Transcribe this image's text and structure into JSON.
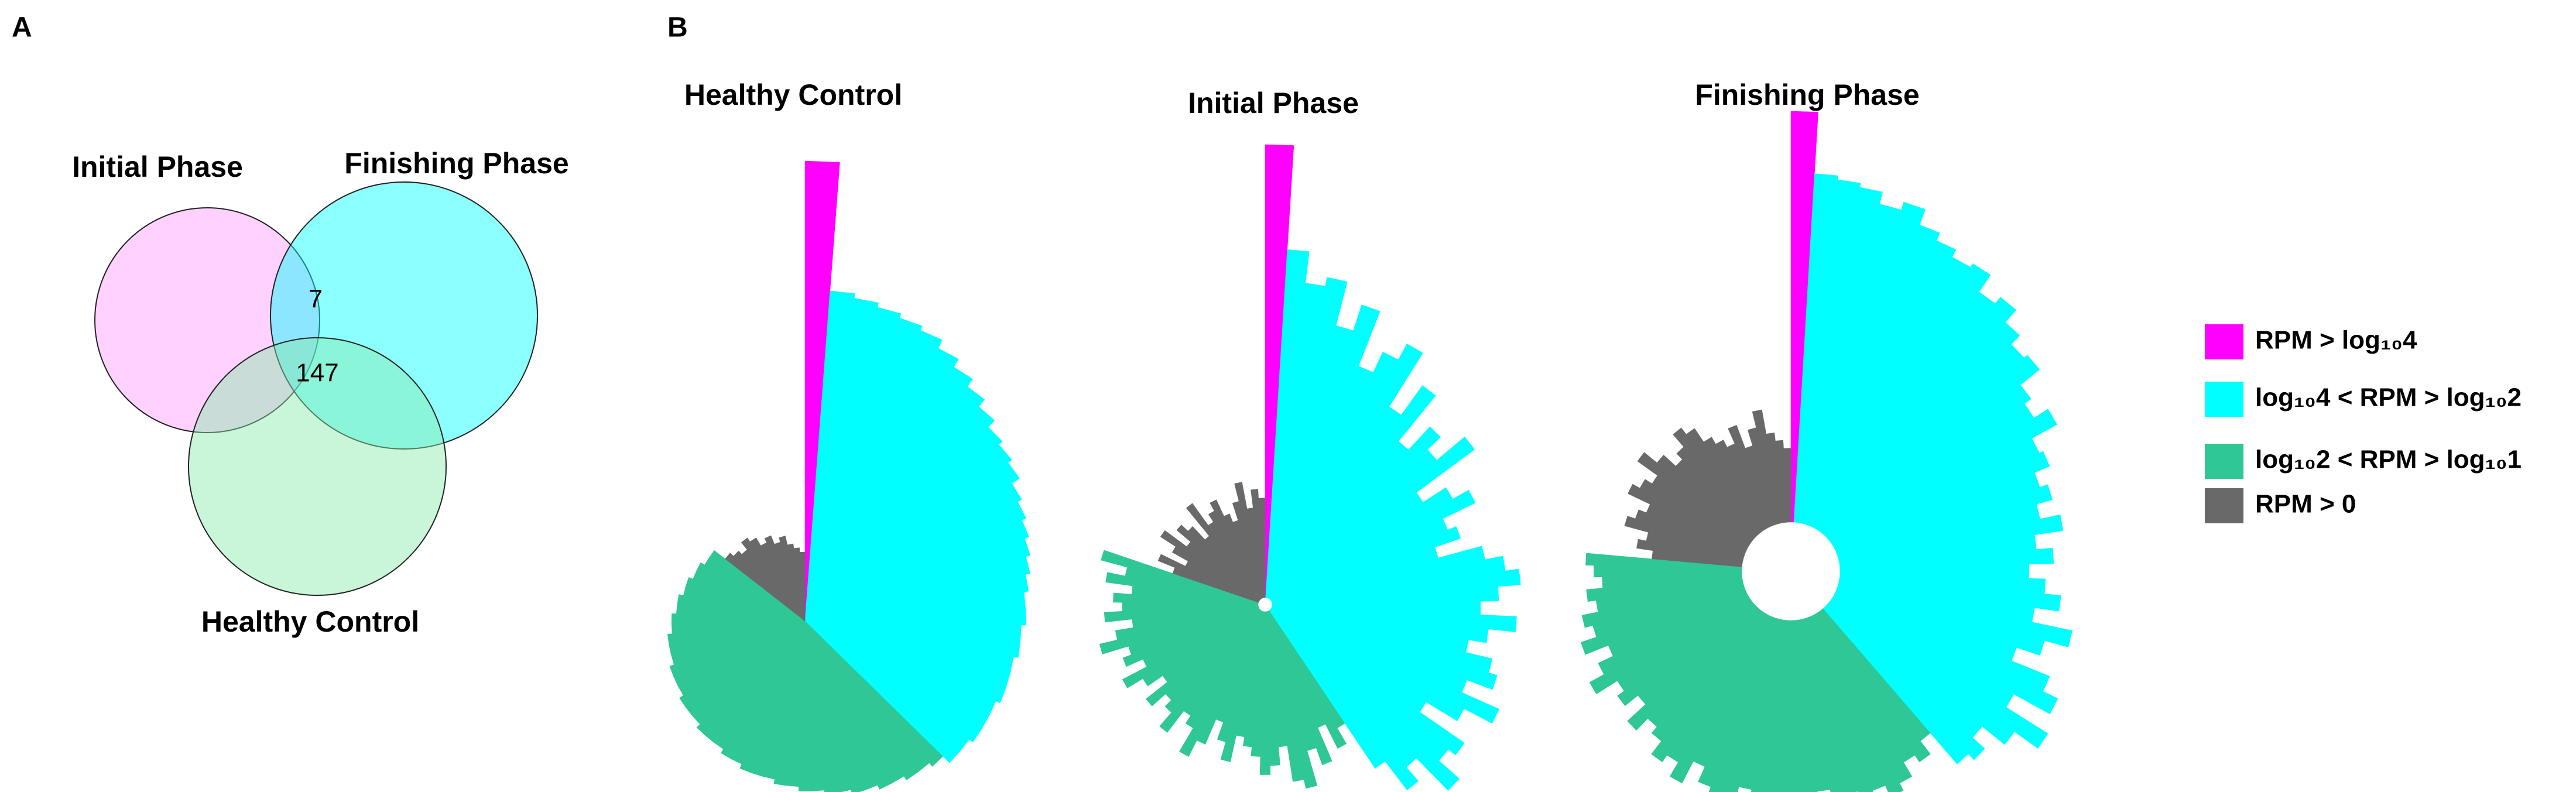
{
  "panel_labels": [
    "A",
    "B"
  ],
  "chart_data": [
    {
      "type": "venn",
      "sets": [
        {
          "name": "Initial Phase",
          "color": "#ff99ff"
        },
        {
          "name": "Finishing Phase",
          "color": "#00ffff"
        },
        {
          "name": "Healthy Control",
          "color": "#88e8a8"
        }
      ],
      "values": [
        7,
        147
      ]
    },
    {
      "type": "radial-bar",
      "titles": [
        "Healthy Control",
        "Initial Phase",
        "Finishing Phase"
      ],
      "ylim": [
        0,
        100
      ],
      "series": [
        {
          "name": "RPM > log₁₀4",
          "color": "#ff00ff",
          "values": [
            [
              100
            ],
            [
              100
            ],
            [
              100
            ]
          ]
        },
        {
          "name": "log₁₀4 < RPM > log₁₀2",
          "color": "#00ffff",
          "values": [
            [
              72,
              71,
              70,
              69,
              68,
              66,
              64,
              62,
              60,
              58,
              57,
              56,
              54,
              53,
              52,
              51,
              50,
              49,
              48,
              48,
              47,
              47,
              46,
              46,
              46,
              45,
              45,
              45,
              44,
              44
            ],
            [
              77,
              70,
              72,
              62,
              68,
              55,
              60,
              64,
              50,
              58,
              45,
              52,
              48,
              56,
              40,
              46,
              50,
              42,
              44,
              38,
              48,
              52,
              55,
              50,
              46,
              54,
              48,
              44,
              50,
              52,
              46,
              55,
              48,
              40,
              52,
              50,
              56,
              46,
              50,
              42
            ],
            [
              85,
              84,
              83,
              80,
              82,
              78,
              76,
              74,
              75,
              70,
              72,
              68,
              65,
              66,
              60,
              58,
              62,
              55,
              56,
              52,
              54,
              50,
              55,
              48,
              52,
              46,
              50,
              54,
              48,
              58,
              52,
              46,
              56,
              60,
              50,
              62,
              55,
              48,
              52,
              50
            ]
          ]
        },
        {
          "name": "log₁₀2 < RPM > log₁₀1",
          "color": "#2ec795",
          "values": [
            [
              42,
              41,
              41,
              40,
              40,
              39,
              39,
              38,
              38,
              37,
              37,
              36,
              36,
              35,
              35,
              35,
              34,
              34,
              33,
              33,
              33,
              32,
              32,
              32,
              31,
              31,
              31,
              30,
              30,
              30,
              29,
              29,
              28,
              28,
              27,
              27,
              26,
              26,
              25,
              25
            ],
            [
              30,
              34,
              28,
              36,
              32,
              40,
              38,
              30,
              34,
              36,
              32,
              30,
              28,
              34,
              30,
              26,
              32,
              36,
              30,
              28,
              34,
              30,
              28,
              32,
              26,
              30,
              34,
              28,
              32,
              30,
              36,
              32,
              28,
              34,
              30,
              32,
              28,
              34,
              30,
              36
            ],
            [
              40,
              44,
              42,
              46,
              48,
              45,
              50,
              44,
              47,
              42,
              46,
              48,
              44,
              50,
              46,
              42,
              45,
              48,
              44,
              40,
              46,
              42,
              44,
              40,
              38,
              42,
              36,
              40,
              38,
              44,
              40,
              36,
              42,
              38,
              40,
              36,
              38,
              34,
              36,
              38
            ]
          ]
        },
        {
          "name": "RPM > 0",
          "color": "#696969",
          "values": [
            [
              22,
              21,
              20,
              22,
              21,
              19,
              20,
              18,
              19,
              17,
              16,
              15
            ],
            [
              20,
              24,
              18,
              22,
              26,
              20,
              24,
              22,
              18,
              26,
              20,
              22,
              24,
              20,
              18,
              22,
              26,
              20,
              24,
              22
            ],
            [
              22,
              26,
              24,
              30,
              28,
              26,
              32,
              30,
              28,
              34,
              30,
              26,
              28,
              32,
              30,
              26,
              24,
              22,
              26,
              20,
              24,
              28,
              22,
              20,
              18
            ]
          ]
        }
      ]
    }
  ]
}
